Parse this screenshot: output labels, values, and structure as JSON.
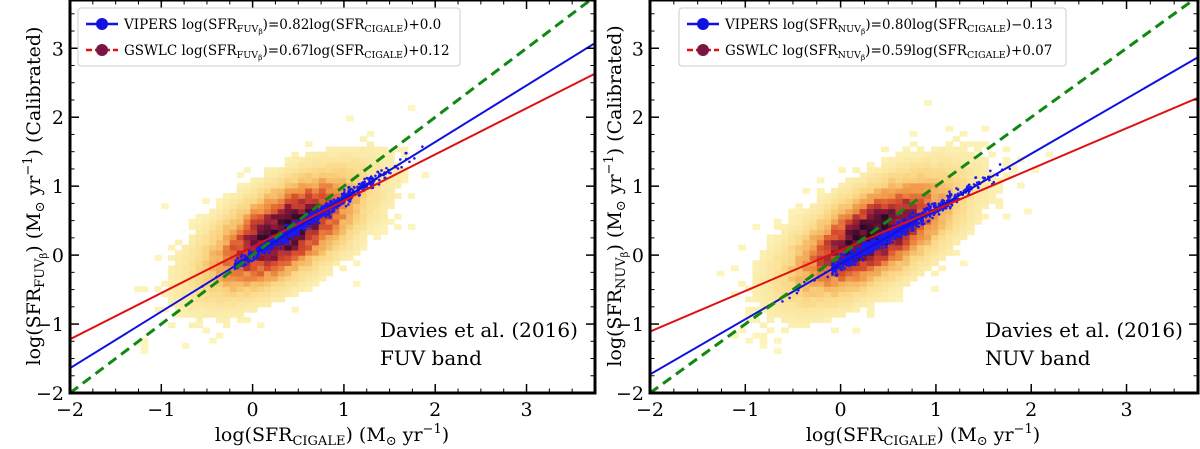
{
  "chart_data": [
    {
      "type": "scatter",
      "panel": "left",
      "xlabel": "log(SFR_CIGALE) (M⊙ yr⁻¹)",
      "ylabel": "log(SFR_FUVβ) (M⊙ yr⁻¹) (Calibrated)",
      "xlim": [
        -2,
        3.75
      ],
      "ylim": [
        -2,
        3.7
      ],
      "xticks": [
        -2,
        -1,
        0,
        1,
        2,
        3
      ],
      "yticks": [
        -2,
        -1,
        0,
        1,
        2,
        3
      ],
      "xtick_labels": [
        "−2",
        "−1",
        "0",
        "1",
        "2",
        "3"
      ],
      "ytick_labels": [
        "−2",
        "−1",
        "0",
        "1",
        "2",
        "3"
      ],
      "legend_position": "top-left",
      "grid": false,
      "annotation": [
        "Davies et al. (2016)",
        "FUV band"
      ],
      "series": [
        {
          "name": "VIPERS log(SFR_FUVβ)=0.82log(SFR_CIGALE)+0.0",
          "kind": "fit-line",
          "slope": 0.82,
          "intercept": 0.0,
          "color": "#1010e0"
        },
        {
          "name": "GSWLC log(SFR_FUVβ)=0.67log(SFR_CIGALE)+0.12",
          "kind": "fit-line",
          "slope": 0.67,
          "intercept": 0.12,
          "color": "#e01010"
        },
        {
          "kind": "one-to-one",
          "slope": 1.0,
          "intercept": 0.0,
          "color": "#118811",
          "dashed": true
        },
        {
          "kind": "points",
          "color": "#1a1af0",
          "x_range": [
            -0.2,
            2.0
          ],
          "slope": 0.82,
          "intercept": 0.0
        },
        {
          "kind": "density-hexbin",
          "center": [
            0.3,
            0.3
          ]
        }
      ]
    },
    {
      "type": "scatter",
      "panel": "right",
      "xlabel": "log(SFR_CIGALE) (M⊙ yr⁻¹)",
      "ylabel": "log(SFR_NUVβ) (M⊙ yr⁻¹) (Calibrated)",
      "xlim": [
        -2,
        3.75
      ],
      "ylim": [
        -2,
        3.7
      ],
      "xticks": [
        -2,
        -1,
        0,
        1,
        2,
        3
      ],
      "yticks": [
        -2,
        -1,
        0,
        1,
        2,
        3
      ],
      "xtick_labels": [
        "−2",
        "−1",
        "0",
        "1",
        "2",
        "3"
      ],
      "ytick_labels": [
        "−2",
        "−1",
        "0",
        "1",
        "2",
        "3"
      ],
      "legend_position": "top-left",
      "grid": false,
      "annotation": [
        "Davies et al. (2016)",
        "NUV band"
      ],
      "series": [
        {
          "name": "VIPERS log(SFR_NUVβ)=0.80log(SFR_CIGALE)−0.13",
          "kind": "fit-line",
          "slope": 0.8,
          "intercept": -0.13,
          "color": "#1010e0"
        },
        {
          "name": "GSWLC log(SFR_NUVβ)=0.59log(SFR_CIGALE)+0.07",
          "kind": "fit-line",
          "slope": 0.59,
          "intercept": 0.07,
          "color": "#e01010"
        },
        {
          "kind": "one-to-one",
          "slope": 1.0,
          "intercept": 0.0,
          "color": "#118811",
          "dashed": true
        },
        {
          "kind": "points",
          "color": "#1a1af0",
          "x_range": [
            -0.1,
            1.8
          ],
          "slope": 0.8,
          "intercept": -0.13
        },
        {
          "kind": "density-hexbin",
          "center": [
            0.3,
            0.25
          ]
        }
      ]
    }
  ],
  "labels": {
    "left": {
      "y_main": "log(SFR",
      "y_sub": "FUV",
      "y_subsub": "β",
      "y_tail": ") (M",
      "y_sun": "⊙",
      "y_unit": " yr",
      "y_exp": "−1",
      "y_end": ") (Calibrated)",
      "x_main": "log(SFR",
      "x_sub": "CIGALE",
      "x_tail": ") (M",
      "x_sun": "⊙",
      "x_unit": " yr",
      "x_exp": "−1",
      "x_end": ")",
      "leg1_a": "VIPERS log(SFR",
      "leg1_sub": "FUV",
      "leg1_subsub": "β",
      "leg1_b": ")=0.82log(SFR",
      "leg1_sub2": "CIGALE",
      "leg1_c": ")+0.0",
      "leg2_a": "GSWLC log(SFR",
      "leg2_sub": "FUV",
      "leg2_subsub": "β",
      "leg2_b": ")=0.67log(SFR",
      "leg2_sub2": "CIGALE",
      "leg2_c": ")+0.12",
      "annot1": "Davies et al. (2016)",
      "annot2": "FUV band"
    },
    "right": {
      "y_main": "log(SFR",
      "y_sub": "NUV",
      "y_subsub": "β",
      "y_tail": ") (M",
      "y_sun": "⊙",
      "y_unit": " yr",
      "y_exp": "−1",
      "y_end": ") (Calibrated)",
      "x_main": "log(SFR",
      "x_sub": "CIGALE",
      "x_tail": ") (M",
      "x_sun": "⊙",
      "x_unit": " yr",
      "x_exp": "−1",
      "x_end": ")",
      "leg1_a": "VIPERS log(SFR",
      "leg1_sub": "NUV",
      "leg1_subsub": "β",
      "leg1_b": ")=0.80log(SFR",
      "leg1_sub2": "CIGALE",
      "leg1_c": ")−0.13",
      "leg2_a": "GSWLC log(SFR",
      "leg2_sub": "NUV",
      "leg2_subsub": "β",
      "leg2_b": ")=0.59log(SFR",
      "leg2_sub2": "CIGALE",
      "leg2_c": ")+0.07",
      "annot1": "Davies et al. (2016)",
      "annot2": "NUV band"
    }
  }
}
